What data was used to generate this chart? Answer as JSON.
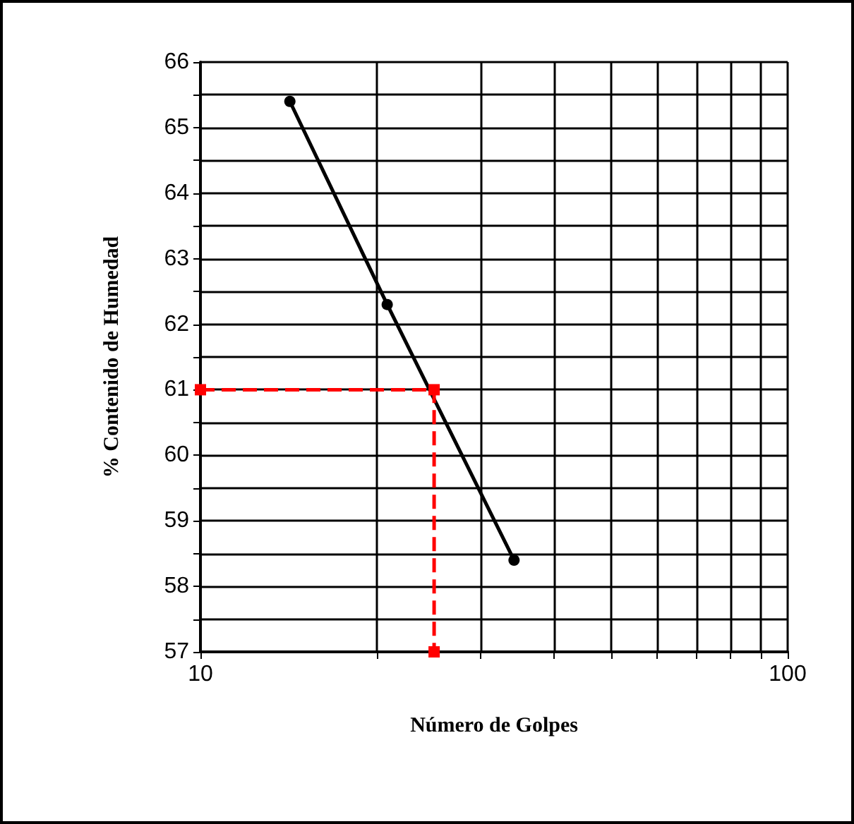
{
  "chart_data": {
    "type": "line",
    "xlabel": "Número de Golpes",
    "ylabel": "% Contenido de Humedad",
    "log": "x",
    "grid": true,
    "marker": "circle",
    "line_style": "solid",
    "series": [
      {
        "color": "#000000",
        "x": [
          14.2,
          20.8,
          34.2
        ],
        "values": [
          65.4,
          62.3,
          58.4
        ]
      },
      {
        "color": "#ff0000",
        "x": [
          10,
          25,
          25
        ],
        "values": [
          61,
          61,
          57
        ],
        "line_style": "dashed",
        "marker": "square"
      }
    ],
    "xlim": [
      10,
      100
    ],
    "xticks": [
      10,
      {
        "value": 20,
        "label": null
      },
      {
        "value": 30,
        "label": null
      },
      {
        "value": 40,
        "label": null
      },
      {
        "value": 50,
        "label": null
      },
      {
        "value": 60,
        "label": null
      },
      {
        "value": 70,
        "label": null
      },
      {
        "value": 80,
        "label": null
      },
      {
        "value": 90,
        "label": null
      },
      100
    ],
    "ylim": [
      57,
      66
    ],
    "yticks": [
      57,
      {
        "value": 57.5,
        "label": null
      },
      58,
      {
        "value": 58.5,
        "label": null
      },
      59,
      {
        "value": 59.5,
        "label": null
      },
      60,
      {
        "value": 60.5,
        "label": null
      },
      61,
      {
        "value": 61.5,
        "label": null
      },
      62,
      {
        "value": 62.5,
        "label": null
      },
      63,
      {
        "value": 63.5,
        "label": null
      },
      64,
      {
        "value": 64.5,
        "label": null
      },
      65,
      {
        "value": 65.5,
        "label": null
      },
      66
    ]
  }
}
